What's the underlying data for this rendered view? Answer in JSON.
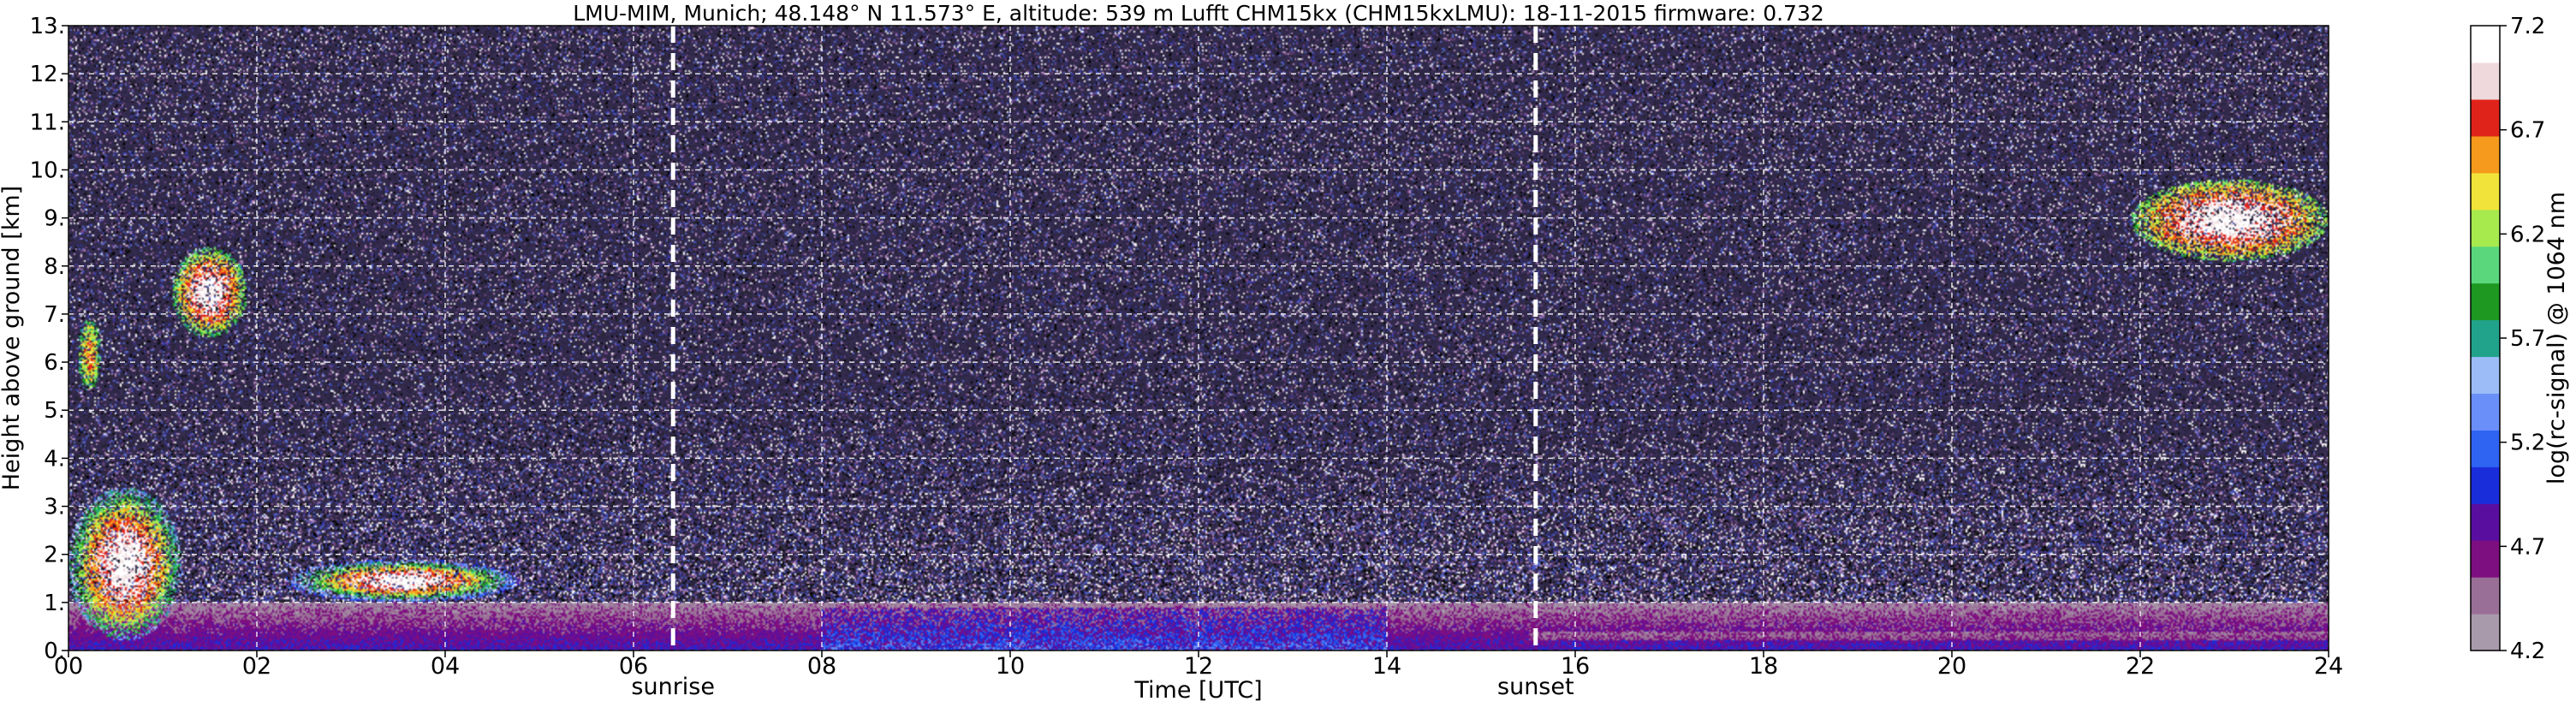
{
  "chart_data": {
    "type": "heatmap",
    "title": "LMU-MIM, Munich; 48.148° N 11.573° E, altitude: 539 m    Lufft CHM15kx (CHM15kxLMU): 18-11-2015    firmware: 0.732",
    "xlabel": "Time [UTC]",
    "ylabel": "Height above ground [km]",
    "xlim": [
      0,
      24
    ],
    "ylim": [
      0,
      13
    ],
    "x_ticks": [
      "00",
      "02",
      "04",
      "06",
      "08",
      "10",
      "12",
      "14",
      "16",
      "18",
      "20",
      "22",
      "24"
    ],
    "y_ticks": [
      "0.",
      "1.",
      "2.",
      "3.",
      "4.",
      "5.",
      "6.",
      "7.",
      "8.",
      "9.",
      "10.",
      "11.",
      "12.",
      "13."
    ],
    "grid": true,
    "colorbar": {
      "label": "log(rc-signal) @ 1064 nm",
      "range": [
        4.2,
        7.2
      ],
      "ticks": [
        "4.2",
        "4.7",
        "5.2",
        "5.7",
        "6.2",
        "6.7",
        "7.2"
      ]
    },
    "annotations": [
      {
        "label": "sunrise",
        "x": 6.42
      },
      {
        "label": "sunset",
        "x": 15.58
      }
    ],
    "features": [
      {
        "name": "boundary layer aerosol",
        "x_range": [
          0,
          24
        ],
        "y_range": [
          0,
          1.0
        ],
        "value_range": [
          4.4,
          5.2
        ]
      },
      {
        "name": "low cloud",
        "x_range": [
          0,
          1.2
        ],
        "y_range": [
          0.2,
          3.4
        ],
        "value_range": [
          5.5,
          7.2
        ]
      },
      {
        "name": "low cloud",
        "x_range": [
          2.3,
          4.8
        ],
        "y_range": [
          1.0,
          1.9
        ],
        "value_range": [
          5.0,
          7.2
        ]
      },
      {
        "name": "mid cloud",
        "x_range": [
          1.1,
          1.9
        ],
        "y_range": [
          6.5,
          8.4
        ],
        "value_range": [
          5.8,
          7.2
        ]
      },
      {
        "name": "mid cloud",
        "x_range": [
          0.1,
          0.35
        ],
        "y_range": [
          5.4,
          6.9
        ],
        "value_range": [
          5.8,
          6.6
        ]
      },
      {
        "name": "high cloud",
        "x_range": [
          21.9,
          24
        ],
        "y_range": [
          8.1,
          9.8
        ],
        "value_range": [
          6.0,
          7.2
        ]
      }
    ],
    "background_value": 4.6
  },
  "colors": {
    "colormap": [
      "#a89aab",
      "#9a6f97",
      "#7e0f80",
      "#5a0ea0",
      "#1a2ddb",
      "#2f64f2",
      "#6a8ff8",
      "#9bbcf6",
      "#21a28b",
      "#1e9820",
      "#5ad77c",
      "#a6ea4e",
      "#f2e33a",
      "#f59a1c",
      "#e0231a",
      "#efd9dc",
      "#ffffff"
    ],
    "background": "#322a4c",
    "noise": [
      "#000000",
      "#ffffff",
      "#7a4b8a",
      "#3a3fb0",
      "#5a6fd0",
      "#b890c0",
      "#222222"
    ],
    "markers": "#ffffff"
  }
}
